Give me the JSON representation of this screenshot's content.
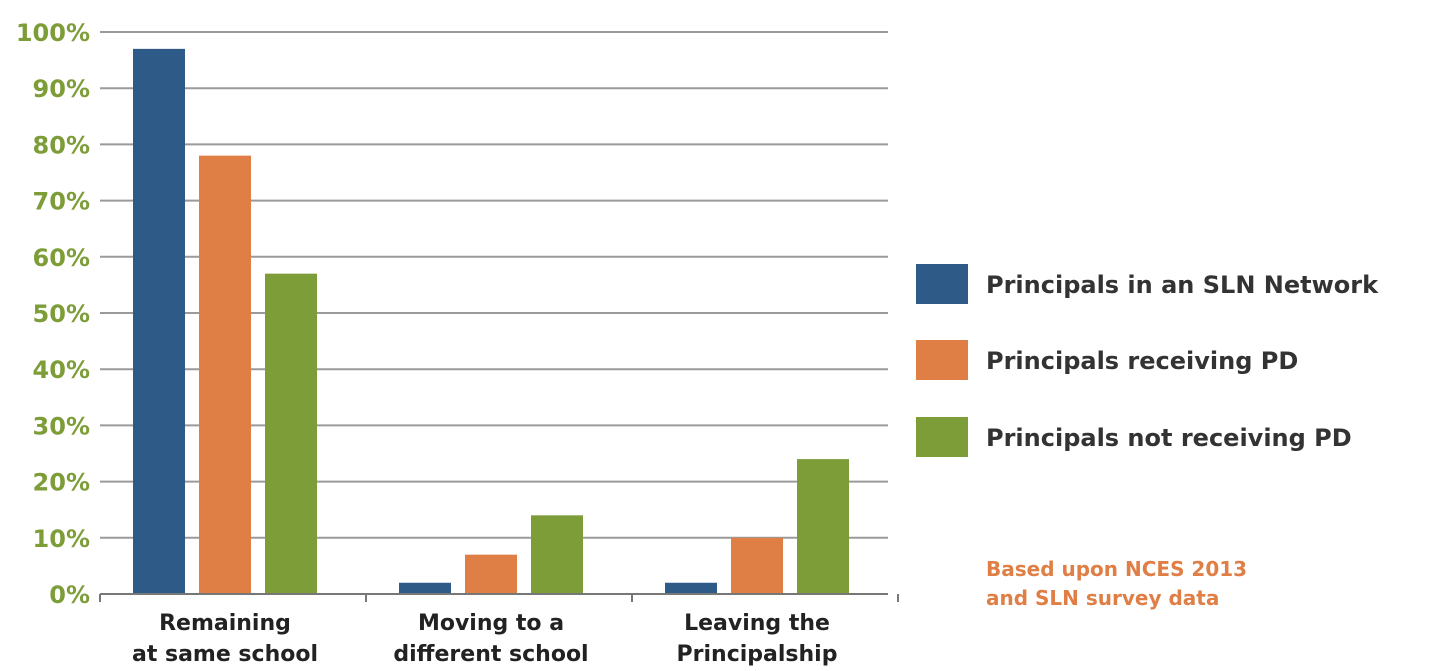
{
  "chart_data": {
    "type": "bar",
    "categories": [
      [
        "Remaining",
        "at same school"
      ],
      [
        "Moving to a",
        "different school"
      ],
      [
        "Leaving the",
        "Principalship"
      ]
    ],
    "series": [
      {
        "name": "Principals in an SLN Network",
        "values": [
          97,
          2,
          2
        ]
      },
      {
        "name": "Principals receiving PD",
        "values": [
          78,
          7,
          10
        ]
      },
      {
        "name": "Principals not receiving PD",
        "values": [
          57,
          14,
          24
        ]
      }
    ],
    "ylim": [
      0,
      100
    ],
    "yticks": [
      0,
      10,
      20,
      30,
      40,
      50,
      60,
      70,
      80,
      90,
      100
    ],
    "ytick_labels": [
      "0%",
      "10%",
      "20%",
      "30%",
      "40%",
      "50%",
      "60%",
      "70%",
      "80%",
      "90%",
      "100%"
    ],
    "grid": true,
    "legend_position": "right",
    "annotation": [
      "Based upon NCES 2013",
      "and SLN survey data"
    ],
    "colors": {
      "series": [
        "#2e5a87",
        "#e07f45",
        "#7d9d38"
      ],
      "ytick": "#7d9d38",
      "annotation": "#e07f45",
      "grid": "#9a9a9a",
      "axis": "#777777"
    }
  }
}
